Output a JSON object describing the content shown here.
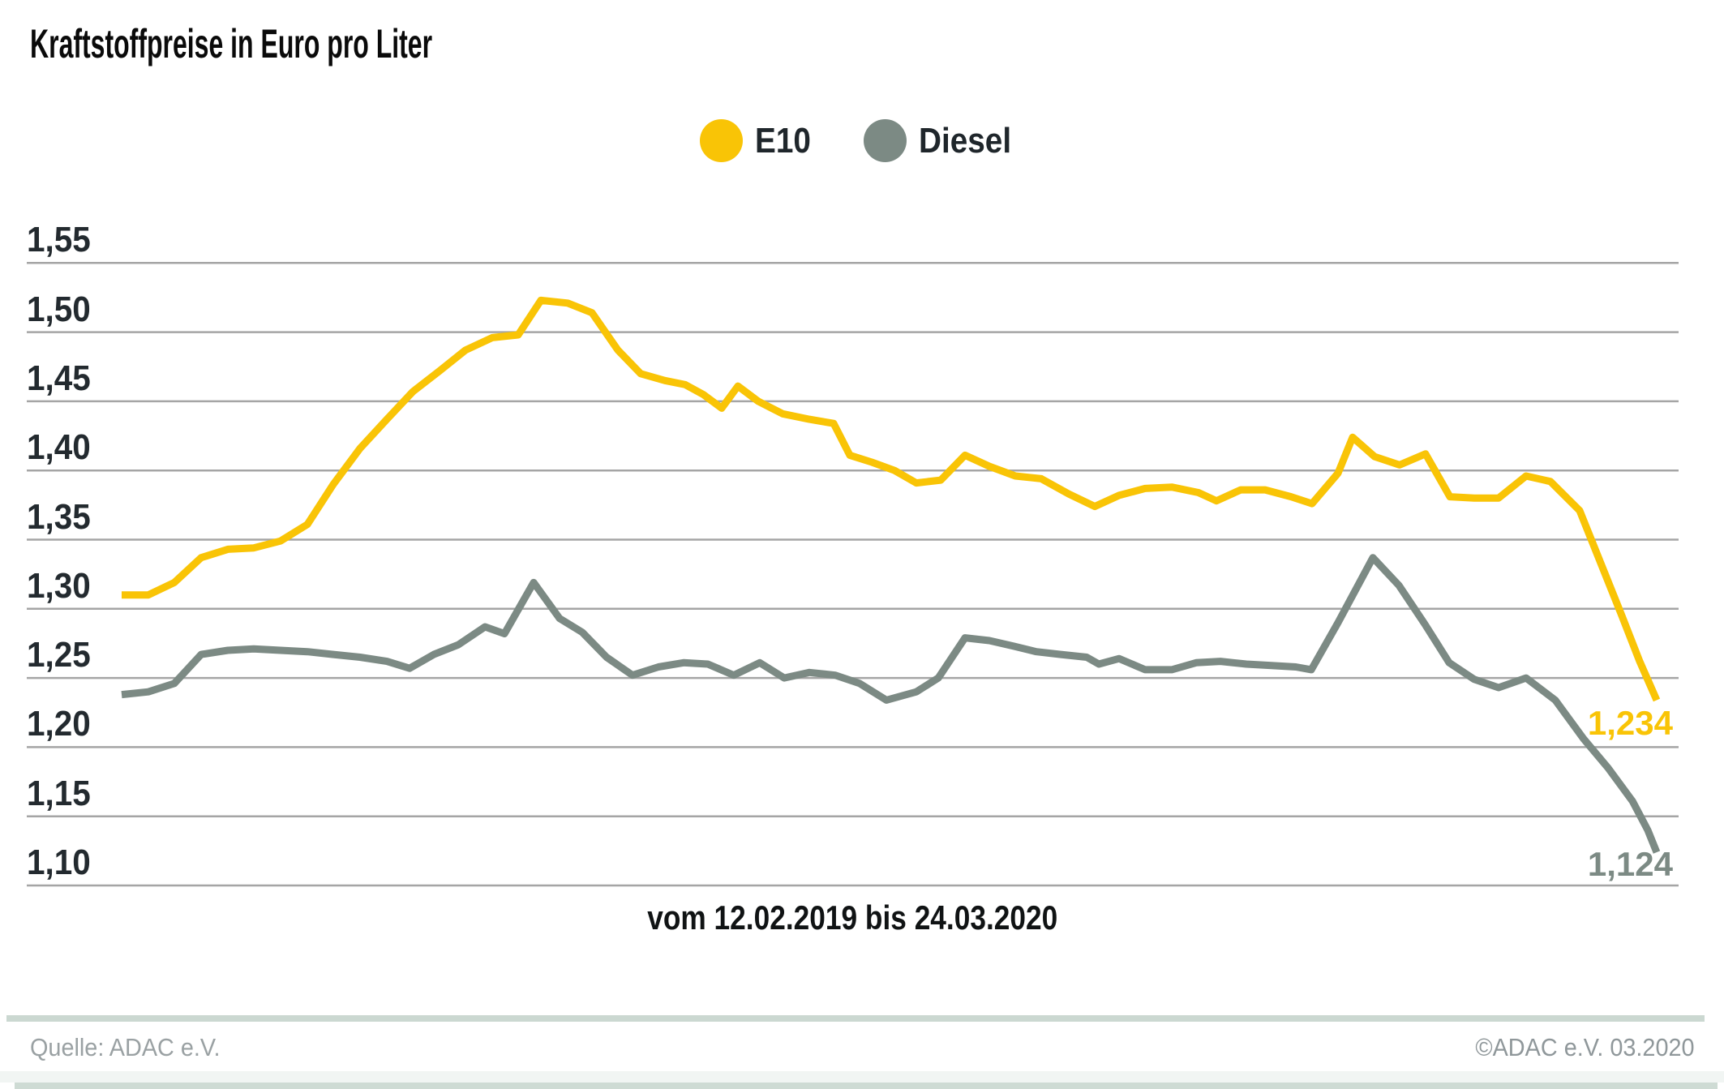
{
  "header": {
    "title": "Kraftstoffpreise in Euro pro Liter"
  },
  "footer": {
    "source": "Quelle: ADAC e.V.",
    "copyright": "©ADAC e.V.  03.2020",
    "divider_color": "#cbd8d1",
    "bottom_bar_color": "#cedbd4"
  },
  "colors": {
    "e10": "#f9c406",
    "diesel": "#7c8a84",
    "gridline": "#a5a5a5",
    "tick_text": "#232a2f"
  },
  "chart_data": {
    "type": "line",
    "title": "Kraftstoffpreise in Euro pro Liter",
    "x_label": "vom 12.02.2019 bis 24.03.2020",
    "x_range": {
      "start": "12.02.2019",
      "end": "24.03.2020"
    },
    "ylabel": "Euro pro Liter",
    "ylim": [
      1.1,
      1.55
    ],
    "y_tick_step": 0.05,
    "grid": "horizontal",
    "legend_position": "top-center",
    "y_ticks": [
      {
        "label": "1,55",
        "value": 1.55
      },
      {
        "label": "1,50",
        "value": 1.5
      },
      {
        "label": "1,45",
        "value": 1.45
      },
      {
        "label": "1,40",
        "value": 1.4
      },
      {
        "label": "1,35",
        "value": 1.35
      },
      {
        "label": "1,30",
        "value": 1.3
      },
      {
        "label": "1,25",
        "value": 1.25
      },
      {
        "label": "1,20",
        "value": 1.2
      },
      {
        "label": "1,15",
        "value": 1.15
      },
      {
        "label": "1,10",
        "value": 1.1
      }
    ],
    "series": [
      {
        "name": "E10",
        "color": "#f9c406",
        "end_label": "1,234",
        "final_value": 1.234,
        "points": [
          [
            0.0,
            1.31
          ],
          [
            0.0174,
            1.31
          ],
          [
            0.0343,
            1.319
          ],
          [
            0.0518,
            1.337
          ],
          [
            0.0692,
            1.343
          ],
          [
            0.0861,
            1.344
          ],
          [
            0.1035,
            1.349
          ],
          [
            0.121,
            1.361
          ],
          [
            0.1379,
            1.39
          ],
          [
            0.1553,
            1.416
          ],
          [
            0.1728,
            1.437
          ],
          [
            0.1897,
            1.457
          ],
          [
            0.2071,
            1.472
          ],
          [
            0.224,
            1.487
          ],
          [
            0.2414,
            1.496
          ],
          [
            0.2583,
            1.498
          ],
          [
            0.2731,
            1.523
          ],
          [
            0.2906,
            1.521
          ],
          [
            0.3064,
            1.514
          ],
          [
            0.3233,
            1.487
          ],
          [
            0.3381,
            1.47
          ],
          [
            0.3539,
            1.465
          ],
          [
            0.3672,
            1.462
          ],
          [
            0.3788,
            1.455
          ],
          [
            0.3909,
            1.445
          ],
          [
            0.4015,
            1.461
          ],
          [
            0.4147,
            1.45
          ],
          [
            0.4306,
            1.441
          ],
          [
            0.448,
            1.437
          ],
          [
            0.4638,
            1.434
          ],
          [
            0.4744,
            1.411
          ],
          [
            0.4887,
            1.406
          ],
          [
            0.5035,
            1.4
          ],
          [
            0.5177,
            1.391
          ],
          [
            0.5336,
            1.393
          ],
          [
            0.5494,
            1.411
          ],
          [
            0.5653,
            1.403
          ],
          [
            0.5822,
            1.396
          ],
          [
            0.5991,
            1.394
          ],
          [
            0.617,
            1.383
          ],
          [
            0.6339,
            1.374
          ],
          [
            0.6498,
            1.382
          ],
          [
            0.6667,
            1.387
          ],
          [
            0.6841,
            1.388
          ],
          [
            0.7015,
            1.384
          ],
          [
            0.7132,
            1.378
          ],
          [
            0.729,
            1.386
          ],
          [
            0.7449,
            1.386
          ],
          [
            0.7618,
            1.381
          ],
          [
            0.7755,
            1.376
          ],
          [
            0.7924,
            1.398
          ],
          [
            0.8019,
            1.424
          ],
          [
            0.8162,
            1.41
          ],
          [
            0.8325,
            1.404
          ],
          [
            0.8494,
            1.412
          ],
          [
            0.8653,
            1.381
          ],
          [
            0.8811,
            1.38
          ],
          [
            0.897,
            1.38
          ],
          [
            0.9149,
            1.396
          ],
          [
            0.9308,
            1.392
          ],
          [
            0.9498,
            1.371
          ],
          [
            0.9657,
            1.327
          ],
          [
            0.9773,
            1.295
          ],
          [
            0.9889,
            1.262
          ],
          [
            1.0,
            1.234
          ]
        ]
      },
      {
        "name": "Diesel",
        "color": "#7c8a84",
        "end_label": "1,124",
        "final_value": 1.124,
        "points": [
          [
            0.0,
            1.238
          ],
          [
            0.0174,
            1.24
          ],
          [
            0.0343,
            1.246
          ],
          [
            0.0518,
            1.267
          ],
          [
            0.0692,
            1.27
          ],
          [
            0.0861,
            1.271
          ],
          [
            0.1035,
            1.27
          ],
          [
            0.121,
            1.269
          ],
          [
            0.1379,
            1.267
          ],
          [
            0.1553,
            1.265
          ],
          [
            0.1728,
            1.262
          ],
          [
            0.1876,
            1.257
          ],
          [
            0.2034,
            1.267
          ],
          [
            0.2193,
            1.274
          ],
          [
            0.2367,
            1.287
          ],
          [
            0.2494,
            1.282
          ],
          [
            0.2684,
            1.319
          ],
          [
            0.2853,
            1.293
          ],
          [
            0.3001,
            1.283
          ],
          [
            0.3159,
            1.265
          ],
          [
            0.3328,
            1.252
          ],
          [
            0.3497,
            1.258
          ],
          [
            0.3661,
            1.261
          ],
          [
            0.3819,
            1.26
          ],
          [
            0.3988,
            1.252
          ],
          [
            0.4157,
            1.261
          ],
          [
            0.4316,
            1.25
          ],
          [
            0.448,
            1.254
          ],
          [
            0.4649,
            1.252
          ],
          [
            0.4808,
            1.246
          ],
          [
            0.4982,
            1.234
          ],
          [
            0.5177,
            1.24
          ],
          [
            0.532,
            1.25
          ],
          [
            0.5494,
            1.279
          ],
          [
            0.5653,
            1.277
          ],
          [
            0.5811,
            1.273
          ],
          [
            0.5959,
            1.269
          ],
          [
            0.6118,
            1.267
          ],
          [
            0.6287,
            1.265
          ],
          [
            0.6366,
            1.26
          ],
          [
            0.6498,
            1.264
          ],
          [
            0.6667,
            1.256
          ],
          [
            0.6841,
            1.256
          ],
          [
            0.7,
            1.261
          ],
          [
            0.7158,
            1.262
          ],
          [
            0.7327,
            1.26
          ],
          [
            0.7491,
            1.259
          ],
          [
            0.7649,
            1.258
          ],
          [
            0.775,
            1.256
          ],
          [
            0.7924,
            1.29
          ],
          [
            0.8151,
            1.337
          ],
          [
            0.832,
            1.317
          ],
          [
            0.8489,
            1.289
          ],
          [
            0.8648,
            1.261
          ],
          [
            0.8811,
            1.249
          ],
          [
            0.897,
            1.243
          ],
          [
            0.9149,
            1.25
          ],
          [
            0.9339,
            1.234
          ],
          [
            0.9524,
            1.206
          ],
          [
            0.9683,
            1.185
          ],
          [
            0.9842,
            1.161
          ],
          [
            0.9942,
            1.14
          ],
          [
            1.0,
            1.124
          ]
        ]
      }
    ]
  }
}
